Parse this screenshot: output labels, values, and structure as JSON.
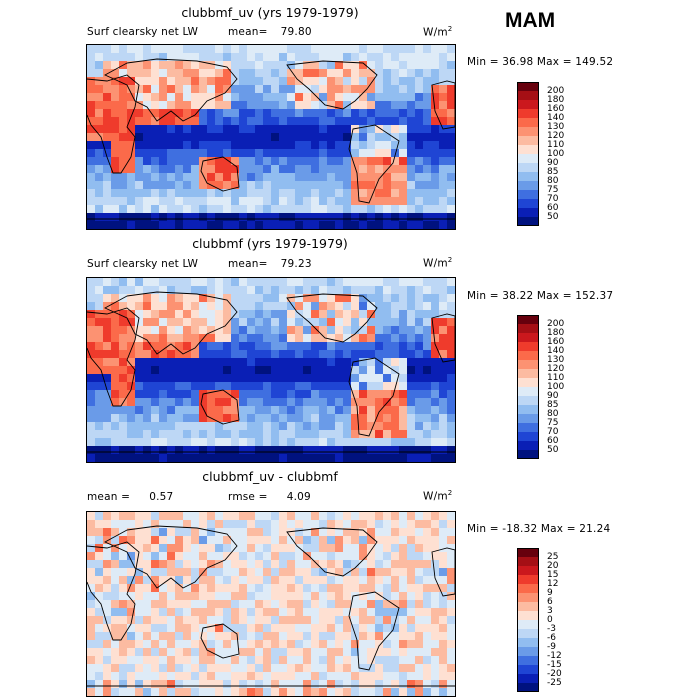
{
  "season": "MAM",
  "chart_data": [
    {
      "type": "heatmap",
      "title": "clubbmf_uv (yrs 1979-1979)",
      "variable": "Surf clearsky net LW",
      "mean_label": "mean=",
      "mean_value": "79.80",
      "units_label": "W/m",
      "units_exp": "2",
      "range_text": "Min =  36.98 Max = 149.52",
      "min": 36.98,
      "max": 149.52,
      "levels": [
        "200",
        "180",
        "160",
        "140",
        "130",
        "120",
        "110",
        "100",
        "90",
        "85",
        "80",
        "75",
        "70",
        "60",
        "50"
      ],
      "colors": [
        "#67000d",
        "#a50f15",
        "#cb181d",
        "#ef3b2c",
        "#fb6a4a",
        "#fc9272",
        "#fcbba1",
        "#fee0d2",
        "#deebf7",
        "#bdd7f5",
        "#91bdf0",
        "#6a9be8",
        "#3f6fe0",
        "#1f45d4",
        "#0a1fb5",
        "#00127f"
      ]
    },
    {
      "type": "heatmap",
      "title": "clubbmf (yrs 1979-1979)",
      "variable": "Surf clearsky net LW",
      "mean_label": "mean=",
      "mean_value": "79.23",
      "units_label": "W/m",
      "units_exp": "2",
      "range_text": "Min =  38.22 Max = 152.37",
      "min": 38.22,
      "max": 152.37,
      "levels": [
        "200",
        "180",
        "160",
        "140",
        "130",
        "120",
        "110",
        "100",
        "90",
        "85",
        "80",
        "75",
        "70",
        "60",
        "50"
      ],
      "colors": [
        "#67000d",
        "#a50f15",
        "#cb181d",
        "#ef3b2c",
        "#fb6a4a",
        "#fc9272",
        "#fcbba1",
        "#fee0d2",
        "#deebf7",
        "#bdd7f5",
        "#91bdf0",
        "#6a9be8",
        "#3f6fe0",
        "#1f45d4",
        "#0a1fb5",
        "#00127f"
      ]
    },
    {
      "type": "heatmap",
      "title": "clubbmf_uv - clubbmf",
      "mean_label": "mean =",
      "mean_value": "0.57",
      "rmse_label": "rmse =",
      "rmse_value": "4.09",
      "units_label": "W/m",
      "units_exp": "2",
      "range_text": "Min = -18.32 Max =  21.24",
      "min": -18.32,
      "max": 21.24,
      "levels": [
        "25",
        "20",
        "15",
        "12",
        "9",
        "6",
        "3",
        "0",
        "-3",
        "-6",
        "-9",
        "-12",
        "-15",
        "-20",
        "-25"
      ],
      "colors": [
        "#67000d",
        "#a50f15",
        "#cb181d",
        "#ef3b2c",
        "#fb6a4a",
        "#fc9272",
        "#fcbba1",
        "#fee0d2",
        "#deebf7",
        "#bdd7f5",
        "#91bdf0",
        "#6a9be8",
        "#3f6fe0",
        "#1f45d4",
        "#0a1fb5",
        "#00127f"
      ]
    }
  ]
}
